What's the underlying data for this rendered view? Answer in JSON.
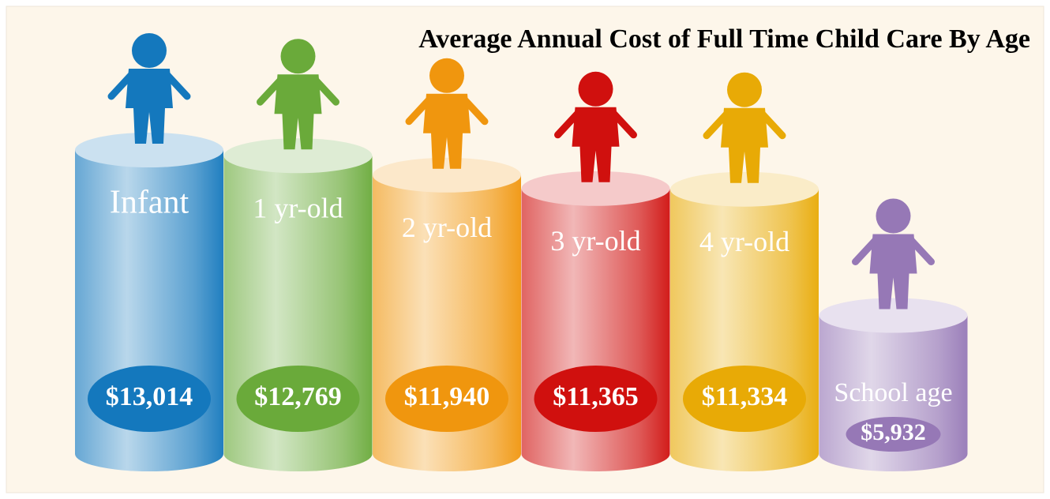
{
  "chart_data": {
    "type": "bar",
    "title": "Average Annual Cost of Full Time Child Care By Age",
    "categories": [
      "Infant",
      "1 yr-old",
      "2 yr-old",
      "3 yr-old",
      "4 yr-old",
      "School age"
    ],
    "values": [
      13014,
      12769,
      11940,
      11365,
      11334,
      5932
    ],
    "value_labels": [
      "$13,014",
      "$12,769",
      "$11,940",
      "$11,365",
      "$11,334",
      "$5,932"
    ],
    "colors": [
      "#1478bd",
      "#6aaa3a",
      "#f0960e",
      "#d0100e",
      "#e8aa06",
      "#9678b6"
    ]
  }
}
